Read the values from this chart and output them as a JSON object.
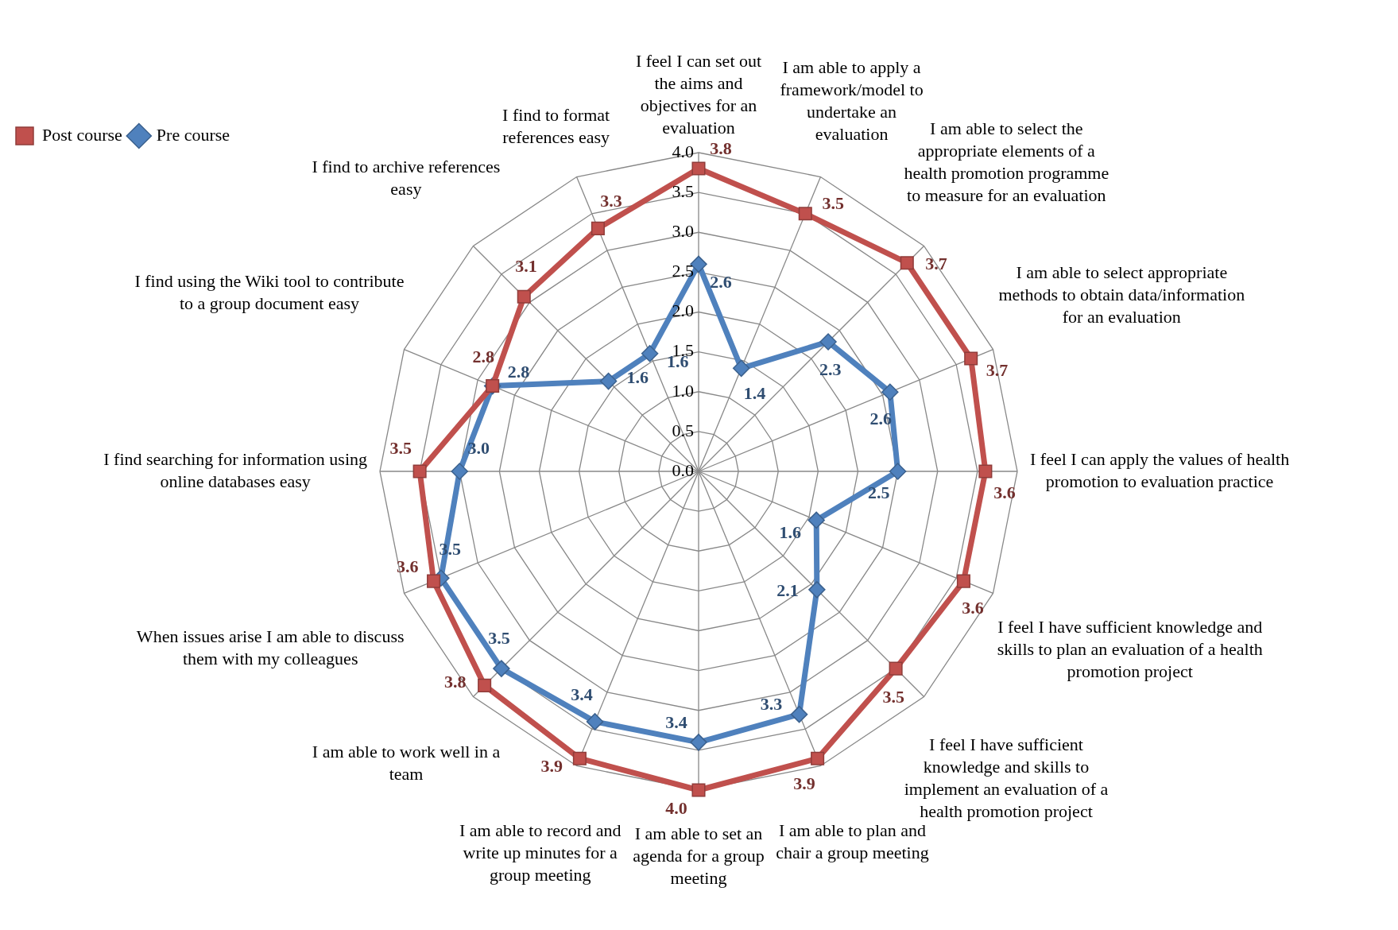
{
  "chart_data": {
    "type": "radar",
    "categories": [
      "I feel I can set out the aims and objectives for an evaluation",
      "I am able to apply a framework/model to undertake an evaluation",
      "I am able to select the appropriate elements of a health promotion programme to measure for an evaluation",
      "I am able to select appropriate methods to obtain data/information for an evaluation",
      "I feel I can apply the values of health promotion to evaluation practice",
      "I feel I have sufficient knowledge and skills to plan an evaluation of a health promotion project",
      "I feel I have sufficient knowledge and skills to implement an evaluation of a health promotion project",
      "I am able to plan and chair a group meeting",
      "I am able to set an agenda for a group meeting",
      "I am able to record and write up minutes for a group meeting",
      "I am able to work well in a team",
      "When issues arise I am able to discuss them with my colleagues",
      "I find searching for information using online databases easy",
      "I find using the Wiki tool to contribute to a group document easy",
      "I find to archive references easy",
      "I find to format references easy"
    ],
    "series": [
      {
        "name": "Post course",
        "color": "#c0504d",
        "marker": "square",
        "values": [
          3.8,
          3.5,
          3.7,
          3.7,
          3.6,
          3.6,
          3.5,
          3.9,
          4.0,
          3.9,
          3.8,
          3.6,
          3.5,
          2.8,
          3.1,
          3.3
        ],
        "value_labels": [
          "3.8",
          "3.5",
          "3.7",
          "3.7",
          "3.6",
          "3.6",
          "3.5",
          "3.9",
          "4.0",
          "3.9",
          "3.8",
          "3.6",
          "3.5",
          "2.8",
          "3.1",
          "3.3"
        ]
      },
      {
        "name": "Pre course",
        "color": "#4f81bd",
        "marker": "diamond",
        "values": [
          2.6,
          1.4,
          2.3,
          2.6,
          2.5,
          1.6,
          2.1,
          3.3,
          3.4,
          3.4,
          3.5,
          3.5,
          3.0,
          2.8,
          1.6,
          1.6
        ],
        "value_labels": [
          "2.6",
          "1.4",
          "2.3",
          "2.6",
          "2.5",
          "1.6",
          "2.1",
          "3.3",
          "3.4",
          "3.4",
          "3.5",
          "3.5",
          "3.0",
          "2.8",
          "1.6",
          "1.6"
        ]
      }
    ],
    "ylim": [
      0,
      4
    ],
    "yticks": [
      {
        "value": 0,
        "label": "0.0"
      },
      {
        "value": 0.5,
        "label": "0.5"
      },
      {
        "value": 1,
        "label": "1.0"
      },
      {
        "value": 1.5,
        "label": "1.5"
      },
      {
        "value": 2,
        "label": "2.0"
      },
      {
        "value": 2.5,
        "label": "2.5"
      },
      {
        "value": 3,
        "label": "3.0"
      },
      {
        "value": 3.5,
        "label": "3.5"
      },
      {
        "value": 4,
        "label": "4.0"
      }
    ],
    "grid": true,
    "legend": "top left",
    "line_style": "solid"
  }
}
